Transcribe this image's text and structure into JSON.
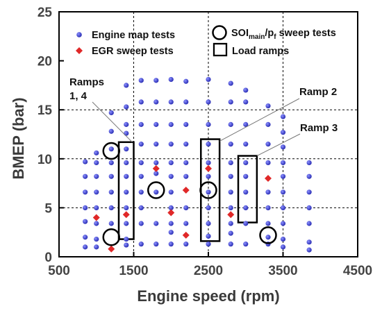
{
  "chart_data": {
    "type": "scatter",
    "xlabel": "Engine speed (rpm)",
    "ylabel": "BMEP (bar)",
    "xlim": [
      500,
      4500
    ],
    "ylim": [
      0,
      25
    ],
    "xticks": [
      "500",
      "1500",
      "2500",
      "3500",
      "4500"
    ],
    "yticks": [
      "0",
      "5",
      "10",
      "15",
      "20",
      "25"
    ],
    "grid": "dashed at x=1500,2500,3500 and y=5,10,15",
    "legend_position": "top",
    "series": [
      {
        "name": "Engine map tests",
        "marker": "circle",
        "color": "#2b2fb5",
        "points": [
          [
            850,
            1
          ],
          [
            850,
            2
          ],
          [
            850,
            3.6
          ],
          [
            850,
            5
          ],
          [
            850,
            6.6
          ],
          [
            850,
            8.2
          ],
          [
            850,
            9.7
          ],
          [
            1000,
            1
          ],
          [
            1000,
            1.8
          ],
          [
            1000,
            3.4
          ],
          [
            1000,
            5
          ],
          [
            1000,
            6.6
          ],
          [
            1000,
            8.2
          ],
          [
            1000,
            9.6
          ],
          [
            1000,
            10.6
          ],
          [
            1200,
            3.4
          ],
          [
            1200,
            5
          ],
          [
            1200,
            6.6
          ],
          [
            1200,
            8.2
          ],
          [
            1200,
            9.6
          ],
          [
            1200,
            11
          ],
          [
            1200,
            12.8
          ],
          [
            1200,
            14.7
          ],
          [
            1400,
            1.2
          ],
          [
            1400,
            1.8
          ],
          [
            1400,
            3.4
          ],
          [
            1400,
            5
          ],
          [
            1400,
            6.6
          ],
          [
            1400,
            8.2
          ],
          [
            1400,
            9.6
          ],
          [
            1400,
            11
          ],
          [
            1400,
            12.6
          ],
          [
            1400,
            13.5
          ],
          [
            1400,
            15.3
          ],
          [
            1400,
            17.5
          ],
          [
            1600,
            1.3
          ],
          [
            1600,
            3.4
          ],
          [
            1600,
            5
          ],
          [
            1600,
            6.6
          ],
          [
            1600,
            8.2
          ],
          [
            1600,
            9.6
          ],
          [
            1600,
            11.5
          ],
          [
            1600,
            13.5
          ],
          [
            1600,
            15.8
          ],
          [
            1600,
            18
          ],
          [
            1800,
            1.3
          ],
          [
            1800,
            3.4
          ],
          [
            1800,
            6.6
          ],
          [
            1800,
            8.5
          ],
          [
            1800,
            9.6
          ],
          [
            1800,
            11.5
          ],
          [
            1800,
            13.5
          ],
          [
            1800,
            15.8
          ],
          [
            1800,
            18
          ],
          [
            2000,
            1.3
          ],
          [
            2000,
            2.5
          ],
          [
            2000,
            3.4
          ],
          [
            2000,
            5
          ],
          [
            2000,
            6.6
          ],
          [
            2000,
            8.2
          ],
          [
            2000,
            9.6
          ],
          [
            2000,
            11.5
          ],
          [
            2000,
            13.5
          ],
          [
            2000,
            15.8
          ],
          [
            2000,
            18.1
          ],
          [
            2200,
            1.3
          ],
          [
            2200,
            3.4
          ],
          [
            2200,
            5
          ],
          [
            2200,
            8.2
          ],
          [
            2200,
            9.6
          ],
          [
            2200,
            11.5
          ],
          [
            2200,
            13.5
          ],
          [
            2200,
            15.8
          ],
          [
            2200,
            17.9
          ],
          [
            2500,
            1.3
          ],
          [
            2500,
            2.1
          ],
          [
            2500,
            3.4
          ],
          [
            2500,
            5
          ],
          [
            2500,
            6.6
          ],
          [
            2500,
            8.2
          ],
          [
            2500,
            9.6
          ],
          [
            2500,
            11.5
          ],
          [
            2500,
            13.5
          ],
          [
            2500,
            15.8
          ],
          [
            2500,
            18.1
          ],
          [
            2800,
            1.3
          ],
          [
            2800,
            2.4
          ],
          [
            2800,
            3.4
          ],
          [
            2800,
            5
          ],
          [
            2800,
            6.6
          ],
          [
            2800,
            8.2
          ],
          [
            2800,
            9.6
          ],
          [
            2800,
            11.5
          ],
          [
            2800,
            13.5
          ],
          [
            2800,
            15.8
          ],
          [
            2800,
            17.7
          ],
          [
            3000,
            1.3
          ],
          [
            3000,
            3.4
          ],
          [
            3000,
            5
          ],
          [
            3000,
            6.6
          ],
          [
            3000,
            8.2
          ],
          [
            3000,
            9.6
          ],
          [
            3000,
            11.5
          ],
          [
            3000,
            13.5
          ],
          [
            3000,
            15.8
          ],
          [
            3000,
            17
          ],
          [
            3300,
            1.3
          ],
          [
            3300,
            2
          ],
          [
            3300,
            3.4
          ],
          [
            3300,
            5
          ],
          [
            3300,
            6.6
          ],
          [
            3300,
            9.6
          ],
          [
            3300,
            11.5
          ],
          [
            3300,
            13.5
          ],
          [
            3300,
            15.4
          ],
          [
            3500,
            1
          ],
          [
            3500,
            1.8
          ],
          [
            3500,
            3.4
          ],
          [
            3500,
            5
          ],
          [
            3500,
            6.6
          ],
          [
            3500,
            8.2
          ],
          [
            3500,
            9.6
          ],
          [
            3500,
            11.2
          ],
          [
            3500,
            12.7
          ],
          [
            3500,
            14.3
          ],
          [
            3850,
            0.7
          ],
          [
            3850,
            1.5
          ],
          [
            3850,
            3.4
          ],
          [
            3850,
            5
          ],
          [
            3850,
            6.6
          ],
          [
            3850,
            8.2
          ],
          [
            3850,
            9.6
          ]
        ]
      },
      {
        "name": "EGR sweep tests",
        "marker": "diamond",
        "color": "#e02828",
        "points": [
          [
            1000,
            4
          ],
          [
            1200,
            0.8
          ],
          [
            1400,
            4.3
          ],
          [
            1800,
            9
          ],
          [
            2000,
            4.5
          ],
          [
            2200,
            2.2
          ],
          [
            2200,
            6.8
          ],
          [
            2500,
            9
          ],
          [
            2800,
            4.3
          ],
          [
            3300,
            8
          ]
        ]
      },
      {
        "name": "SOImain/pf sweep tests",
        "name_main": "SOI",
        "name_sub": "main",
        "name_mid": "/p",
        "name_sub2": "f",
        "name_tail": " sweep tests",
        "marker": "open-circle",
        "points": [
          [
            1200,
            10.8
          ],
          [
            1200,
            2
          ],
          [
            1800,
            6.8
          ],
          [
            2500,
            6.8
          ],
          [
            3300,
            2.2
          ]
        ]
      },
      {
        "name": "Load ramps",
        "marker": "open-rectangle",
        "boxes": [
          {
            "x": [
              1300,
              1500
            ],
            "y": [
              1.8,
              11.7
            ]
          },
          {
            "x": [
              2400,
              2650
            ],
            "y": [
              1.6,
              12
            ]
          },
          {
            "x": [
              2900,
              3150
            ],
            "y": [
              3.5,
              10.3
            ]
          }
        ]
      }
    ],
    "annotations": [
      {
        "line1": "Ramps",
        "line2": "1, 4",
        "pointer_from": [
          1200,
          16
        ],
        "pointer_to": [
          1480,
          11.7
        ]
      },
      {
        "line1": "Ramp 2",
        "pointer_from": [
          3050,
          15.8
        ],
        "pointer_to": [
          2650,
          11.8
        ]
      },
      {
        "line1": "Ramp 3",
        "pointer_from": [
          3200,
          12.6
        ],
        "pointer_to": [
          3150,
          10.3
        ]
      }
    ]
  }
}
